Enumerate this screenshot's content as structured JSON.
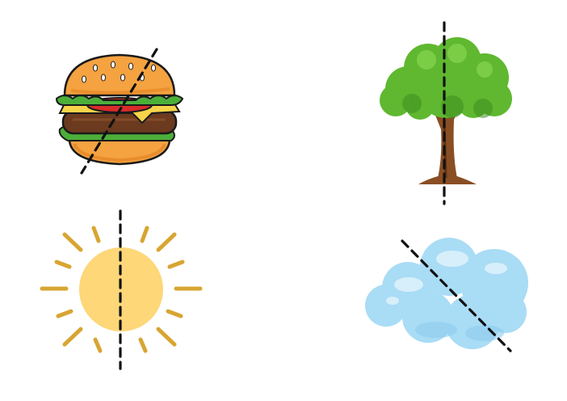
{
  "worksheet": {
    "items": [
      {
        "subject": "hamburger",
        "icon": "hamburger-icon",
        "cut_line": "diagonal"
      },
      {
        "subject": "tree",
        "icon": "tree-icon",
        "cut_line": "vertical"
      },
      {
        "subject": "sun",
        "icon": "sun-icon",
        "cut_line": "vertical"
      },
      {
        "subject": "cloud",
        "icon": "cloud-icon",
        "cut_line": "diagonal"
      }
    ]
  },
  "colors": {
    "bun": "#F5A241",
    "bun_shadow": "#E07F1C",
    "lettuce": "#4CAF3A",
    "cheese": "#F7D44A",
    "tomato": "#D92B2B",
    "patty": "#6B3A1F",
    "tree_foliage": "#5FB830",
    "tree_foliage_dark": "#3E8E1F",
    "trunk": "#8A4E24",
    "sun_core": "#FDD778",
    "sun_rays": "#D8A532",
    "cloud": "#A9DCF5",
    "cloud_highlight": "#DDF2FC",
    "cut_line": "#111111"
  }
}
